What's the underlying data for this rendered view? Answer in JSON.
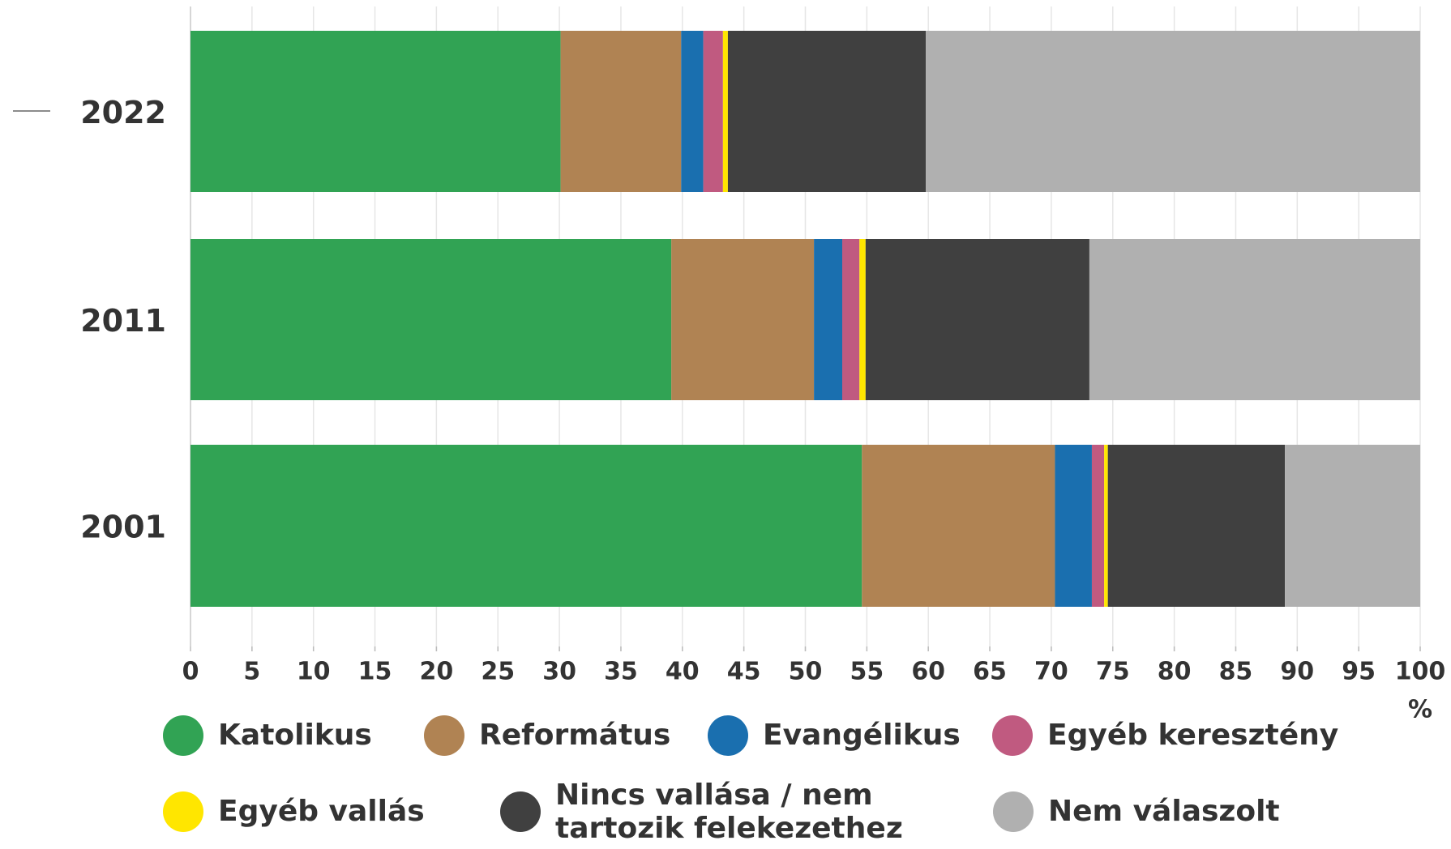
{
  "chart_data": {
    "type": "stacked-bar-horizontal",
    "categories": [
      "2022",
      "2011",
      "2001"
    ],
    "series": [
      {
        "name": "Katolikus",
        "color": "#31a354",
        "values": [
          30.1,
          39.1,
          54.6
        ]
      },
      {
        "name": "Református",
        "color": "#b08353",
        "values": [
          9.8,
          11.6,
          15.7
        ]
      },
      {
        "name": "Evangélikus",
        "color": "#1a6faf",
        "values": [
          1.8,
          2.3,
          3.0
        ]
      },
      {
        "name": "Egyéb keresztény",
        "color": "#c05a80",
        "values": [
          1.6,
          1.4,
          1.0
        ]
      },
      {
        "name": "Egyéb vallás",
        "color": "#ffe600",
        "values": [
          0.4,
          0.5,
          0.3
        ]
      },
      {
        "name": "Nincs vallása / nem tartozik felekezethez",
        "color": "#404040",
        "values": [
          16.1,
          18.2,
          14.4
        ]
      },
      {
        "name": "Nem válaszolt",
        "color": "#b0b0b0",
        "values": [
          40.2,
          26.9,
          11.0
        ]
      }
    ],
    "x_label": "%",
    "xlim": [
      0,
      100
    ],
    "xticks": [
      0,
      5,
      10,
      15,
      20,
      25,
      30,
      35,
      40,
      45,
      50,
      55,
      60,
      65,
      70,
      75,
      80,
      85,
      90,
      95,
      100
    ],
    "grid": true
  }
}
